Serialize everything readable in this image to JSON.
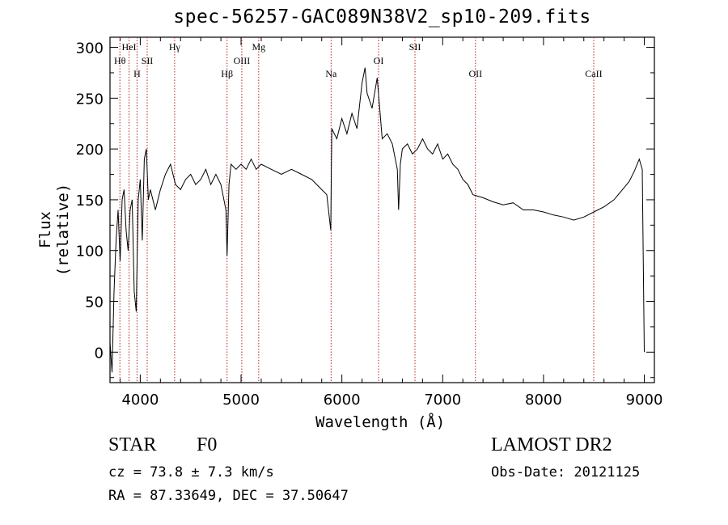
{
  "title": "spec-56257-GAC089N38V2_sp10-209.fits",
  "info": {
    "class": "STAR",
    "subclass": "F0",
    "survey": "LAMOST DR2",
    "cz": "cz = 73.8 ± 7.3 km/s",
    "obs_date": "Obs-Date: 20121125",
    "radec": "RA =  87.33649, DEC =  37.50647"
  },
  "chart_data": {
    "type": "line",
    "xlabel": "Wavelength (Å)",
    "ylabel": "Flux (relative)",
    "xlim": [
      3700,
      9100
    ],
    "ylim": [
      -30,
      310
    ],
    "xticks": [
      4000,
      5000,
      6000,
      7000,
      8000,
      9000
    ],
    "yticks": [
      0,
      50,
      100,
      150,
      200,
      250,
      300
    ],
    "line_color": "#000000",
    "marker_color": "#b22222",
    "series": [
      {
        "x": [
          3700,
          3720,
          3740,
          3760,
          3780,
          3800,
          3820,
          3840,
          3860,
          3880,
          3900,
          3920,
          3940,
          3960,
          3980,
          4000,
          4020,
          4040,
          4060,
          4080,
          4100,
          4150,
          4200,
          4250,
          4300,
          4350,
          4400,
          4450,
          4500,
          4550,
          4600,
          4650,
          4700,
          4750,
          4800,
          4850,
          4861,
          4880,
          4900,
          4950,
          5000,
          5050,
          5100,
          5150,
          5200,
          5300,
          5400,
          5500,
          5600,
          5700,
          5800,
          5850,
          5890,
          5900,
          5950,
          6000,
          6050,
          6100,
          6150,
          6200,
          6230,
          6250,
          6300,
          6350,
          6400,
          6450,
          6500,
          6550,
          6563,
          6580,
          6600,
          6650,
          6700,
          6750,
          6800,
          6850,
          6900,
          6950,
          7000,
          7050,
          7100,
          7150,
          7200,
          7250,
          7300,
          7400,
          7500,
          7600,
          7700,
          7800,
          7900,
          8000,
          8100,
          8200,
          8300,
          8400,
          8500,
          8600,
          8700,
          8800,
          8850,
          8900,
          8950,
          8980,
          9000
        ],
        "y": [
          10,
          -20,
          60,
          110,
          140,
          90,
          150,
          160,
          120,
          100,
          140,
          150,
          60,
          40,
          150,
          170,
          110,
          190,
          200,
          150,
          160,
          140,
          160,
          175,
          185,
          165,
          160,
          170,
          175,
          165,
          170,
          180,
          165,
          175,
          165,
          140,
          95,
          165,
          185,
          180,
          185,
          180,
          190,
          180,
          185,
          180,
          175,
          180,
          175,
          170,
          160,
          155,
          120,
          220,
          210,
          230,
          215,
          235,
          220,
          265,
          280,
          255,
          240,
          270,
          210,
          215,
          205,
          180,
          140,
          185,
          200,
          205,
          195,
          200,
          210,
          200,
          195,
          205,
          190,
          195,
          185,
          180,
          170,
          165,
          155,
          152,
          148,
          145,
          147,
          140,
          140,
          138,
          135,
          133,
          130,
          133,
          138,
          143,
          150,
          162,
          168,
          178,
          190,
          180,
          0
        ]
      }
    ],
    "lines": [
      {
        "label": "Hθ",
        "x": 3798
      },
      {
        "label": "HeI",
        "x": 3889
      },
      {
        "label": "H",
        "x": 3968
      },
      {
        "label": "SII",
        "x": 4069
      },
      {
        "label": "Hγ",
        "x": 4341
      },
      {
        "label": "Hβ",
        "x": 4861
      },
      {
        "label": "OIII",
        "x": 5007
      },
      {
        "label": "Mg",
        "x": 5175
      },
      {
        "label": "Na",
        "x": 5893
      },
      {
        "label": "OI",
        "x": 6364
      },
      {
        "label": "SII",
        "x": 6725
      },
      {
        "label": "OII",
        "x": 7325
      },
      {
        "label": "CaII",
        "x": 8498
      }
    ]
  }
}
